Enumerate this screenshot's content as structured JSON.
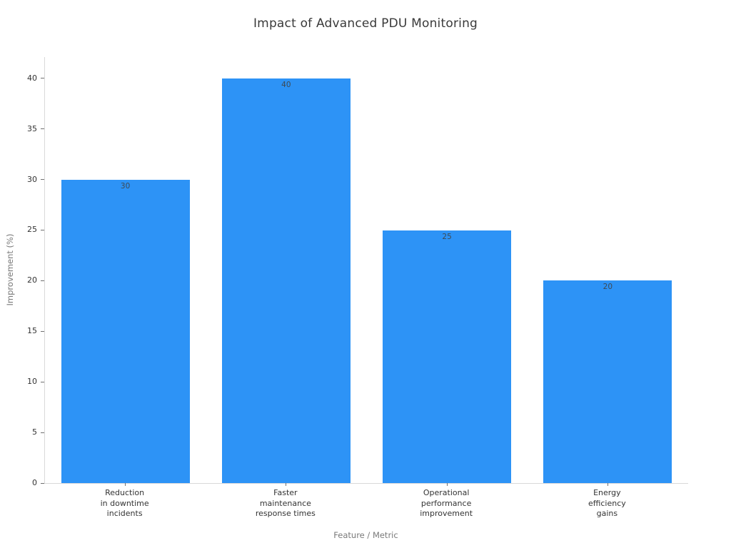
{
  "chart_data": {
    "type": "bar",
    "title": "Impact of Advanced PDU Monitoring",
    "xlabel": "Feature / Metric",
    "ylabel": "Improvement (%)",
    "categories": [
      [
        "Reduction",
        "in downtime",
        "incidents"
      ],
      [
        "Faster",
        "maintenance",
        "response times"
      ],
      [
        "Operational",
        "performance",
        "improvement"
      ],
      [
        "Energy",
        "efficiency",
        "gains"
      ]
    ],
    "values": [
      30,
      40,
      25,
      20
    ],
    "value_labels": [
      "30",
      "40",
      "25",
      "20"
    ],
    "yticks": [
      0,
      5,
      10,
      15,
      20,
      25,
      30,
      35,
      40
    ],
    "ylim": [
      0,
      42.1
    ],
    "grid": false,
    "legend": false,
    "values_shown_on_bars": true,
    "colors": {
      "bar": "#2D93F6",
      "spine": "#D9D9D9",
      "tick": "#707070",
      "tick_label": "#333333",
      "axis_title": "#7A7A7A",
      "title": "#3A3A3A",
      "value_label": "#3E4A54",
      "background": "#FFFFFF"
    }
  }
}
